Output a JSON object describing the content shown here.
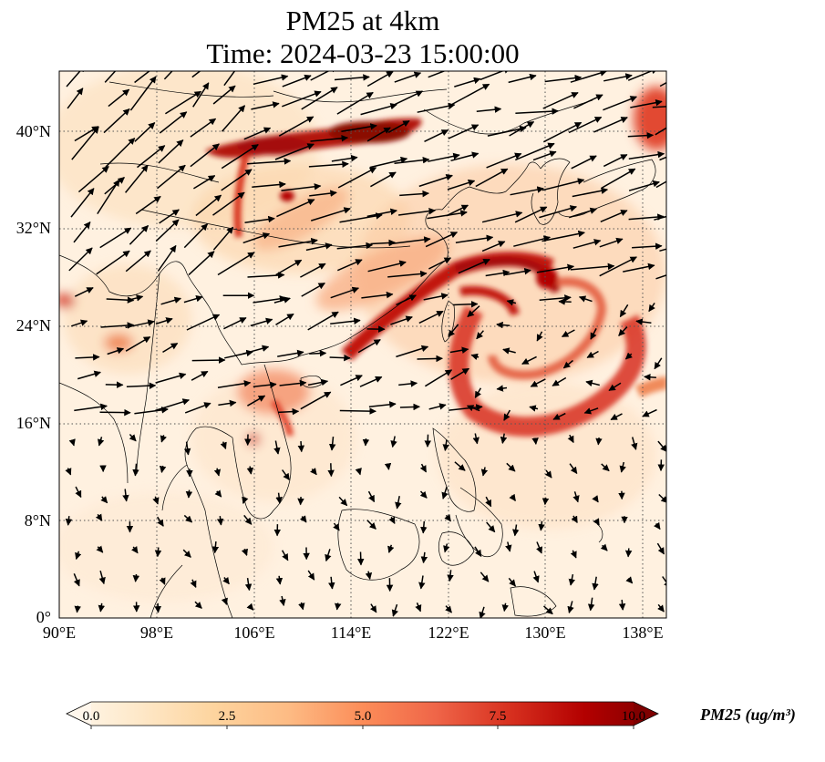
{
  "title": {
    "line1": "PM25 at 4km",
    "line2": "Time: 2024-03-23 15:00:00"
  },
  "map": {
    "lon_range": [
      90,
      139.5
    ],
    "lat_range": [
      0,
      44.7
    ],
    "lat_ticks": [
      {
        "value": 0,
        "label": "0°"
      },
      {
        "value": 8,
        "label": "8°N"
      },
      {
        "value": 16,
        "label": "16°N"
      },
      {
        "value": 24,
        "label": "24°N"
      },
      {
        "value": 32,
        "label": "32°N"
      },
      {
        "value": 40,
        "label": "40°N"
      }
    ],
    "lon_ticks": [
      {
        "value": 90,
        "label": "90°E"
      },
      {
        "value": 98,
        "label": "98°E"
      },
      {
        "value": 106,
        "label": "106°E"
      },
      {
        "value": 114,
        "label": "114°E"
      },
      {
        "value": 122,
        "label": "122°E"
      },
      {
        "value": 130,
        "label": "130°E"
      },
      {
        "value": 138,
        "label": "138°E"
      }
    ],
    "gridlines": true,
    "coastlines": true,
    "wind_vectors": true
  },
  "colorbar": {
    "label": "PM25 (ug/m³)",
    "ticks": [
      "0.0",
      "2.5",
      "5.0",
      "7.5",
      "10.0"
    ],
    "range": [
      0,
      10
    ],
    "extend": "both",
    "colormap": "OrRd",
    "colors": [
      "#fff7ec",
      "#fee8c8",
      "#fdd49e",
      "#fdbb84",
      "#fc8d59",
      "#ef6548",
      "#d7301f",
      "#b30000",
      "#7f0000"
    ]
  }
}
